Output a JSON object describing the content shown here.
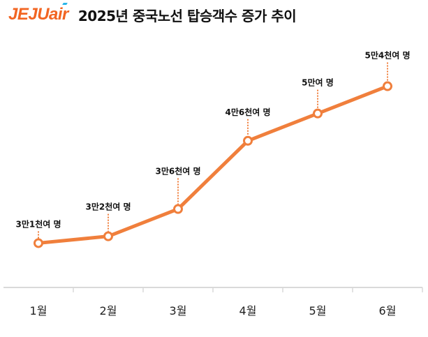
{
  "header": {
    "logo_text": "JEJUair",
    "title": "2025년 중국노선 탑승객수 증가 추이"
  },
  "chart_data": {
    "type": "line",
    "title": "2025년 중국노선 탑승객수 증가 추이",
    "categories": [
      "1월",
      "2월",
      "3월",
      "4월",
      "5월",
      "6월"
    ],
    "values": [
      31000,
      32000,
      36000,
      46000,
      50000,
      54000
    ],
    "data_labels": [
      "3만1천여 명",
      "3만2천여 명",
      "3만6천여 명",
      "4만6천여 명",
      "5만여 명",
      "5만4천여 명"
    ],
    "xlabel": "",
    "ylabel": "",
    "ylim": [
      24500,
      60500
    ],
    "grid": false,
    "y_axis_shown": false,
    "colors": {
      "line": "#f07f3c",
      "marker_fill": "#ffffff",
      "axis": "#d9d9d9"
    }
  }
}
